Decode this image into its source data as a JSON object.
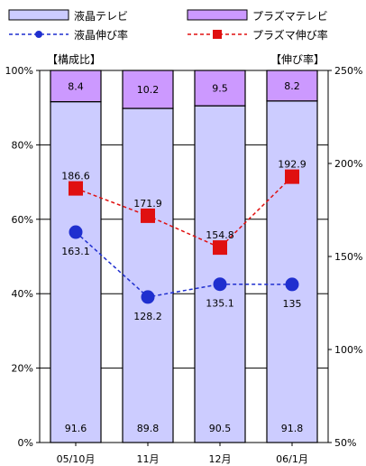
{
  "chart_data": {
    "type": "bar",
    "categories": [
      "05/10月",
      "11月",
      "12月",
      "06/1月"
    ],
    "series": [
      {
        "name": "液晶テレビ",
        "kind": "stacked-bar",
        "axis": "left",
        "values": [
          91.6,
          89.8,
          90.5,
          91.8
        ],
        "color": "#ccccff"
      },
      {
        "name": "プラズマテレビ",
        "kind": "stacked-bar",
        "axis": "left",
        "values": [
          8.4,
          10.2,
          9.5,
          8.2
        ],
        "color": "#cc99ff"
      },
      {
        "name": "液晶伸び率",
        "kind": "line",
        "axis": "right",
        "values": [
          163.1,
          128.2,
          135.1,
          135.0
        ],
        "color": "#1f2fcf",
        "marker": "circle"
      },
      {
        "name": "プラズマ伸び率",
        "kind": "line",
        "axis": "right",
        "values": [
          186.6,
          171.9,
          154.8,
          192.9
        ],
        "color": "#e01010",
        "marker": "square"
      }
    ],
    "left_axis": {
      "label": "【構成比】",
      "range": [
        0,
        100
      ],
      "ticks": [
        "0%",
        "20%",
        "40%",
        "60%",
        "80%",
        "100%"
      ]
    },
    "right_axis": {
      "label": "【伸び率】",
      "range": [
        50,
        250
      ],
      "ticks": [
        "50%",
        "100%",
        "150%",
        "200%",
        "250%"
      ]
    },
    "legend_position": "top",
    "grid": true
  }
}
